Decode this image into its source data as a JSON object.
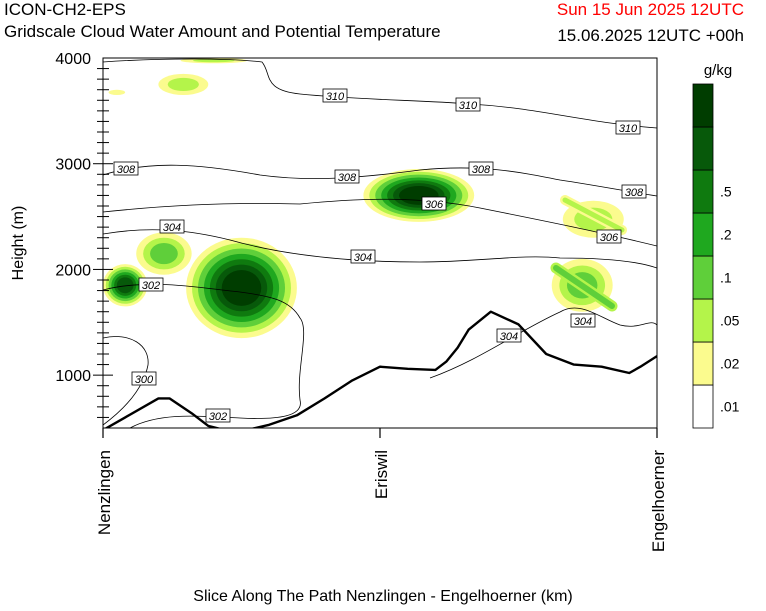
{
  "header": {
    "model": "ICON-CH2-EPS",
    "title": "Gridscale Cloud Water Amount and Potential Temperature",
    "datetime": "Sun 15 Jun 2025 12UTC",
    "validity": "15.06.2025 12UTC +00h"
  },
  "colors": {
    "datetime": "#ff0000",
    "contour": "#000000",
    "terrain": "#000000"
  },
  "chart_data": {
    "type": "heatmap",
    "title": "Gridscale Cloud Water Amount and Potential Temperature",
    "xlabel": "Slice Along The Path Nenzlingen - Engelhoerner (km)",
    "ylabel": "Height (m)",
    "ylim": [
      500,
      4000
    ],
    "y_ticks": [
      "1000",
      "2000",
      "3000",
      "4000"
    ],
    "x_stations": [
      "Nenzlingen",
      "Eriswil",
      "Engelhoerner"
    ],
    "legend": {
      "unit": "g/kg",
      "placement": "right",
      "levels": [
        ".01",
        ".02",
        ".05",
        ".1",
        ".2",
        ".5"
      ],
      "colors": [
        "#ffffff",
        "#fbfb8e",
        "#b4f44a",
        "#5fcf3a",
        "#1fa81f",
        "#0f7a0f",
        "#07590a",
        "#003d00"
      ]
    },
    "contour_labels": [
      "310",
      "310",
      "310",
      "308",
      "308",
      "308",
      "308",
      "306",
      "306",
      "304",
      "304",
      "304",
      "304",
      "302",
      "302",
      "300"
    ],
    "terrain_profile": {
      "x_km": [
        0,
        4,
        10,
        12,
        16,
        19,
        22,
        25,
        30,
        35,
        40,
        45,
        50,
        55,
        60,
        62,
        64,
        66,
        70,
        75,
        80,
        85,
        90,
        95,
        97,
        100
      ],
      "height_m": [
        480,
        600,
        780,
        780,
        640,
        520,
        480,
        470,
        530,
        620,
        780,
        950,
        1080,
        1060,
        1050,
        1130,
        1260,
        1430,
        1600,
        1480,
        1200,
        1100,
        1080,
        1020,
        1080,
        1180
      ]
    },
    "cloud_cells": [
      {
        "x_km": [
          1,
          4
        ],
        "height_m": [
          3650,
          3700
        ],
        "max_level": ".02"
      },
      {
        "x_km": [
          10,
          19
        ],
        "height_m": [
          3650,
          3850
        ],
        "max_level": ".02"
      },
      {
        "x_km": [
          14,
          26
        ],
        "height_m": [
          3950,
          4000
        ],
        "max_level": ".02"
      },
      {
        "x_km": [
          0,
          8
        ],
        "height_m": [
          1650,
          2050
        ],
        "max_level": ".5"
      },
      {
        "x_km": [
          6,
          16
        ],
        "height_m": [
          1950,
          2350
        ],
        "max_level": ".05"
      },
      {
        "x_km": [
          15,
          35
        ],
        "height_m": [
          1350,
          2300
        ],
        "max_level": "> .5"
      },
      {
        "x_km": [
          47,
          67
        ],
        "height_m": [
          2450,
          2950
        ],
        "max_level": "> .5"
      },
      {
        "x_km": [
          83,
          94
        ],
        "height_m": [
          2300,
          2650
        ],
        "max_level": ".02"
      },
      {
        "x_km": [
          81,
          92
        ],
        "height_m": [
          1600,
          2100
        ],
        "max_level": ".05"
      }
    ]
  },
  "labels": {
    "xlabel": "Slice Along The Path Nenzlingen - Engelhoerner (km)",
    "ylabel": "Height (m)",
    "unit": "g/kg"
  }
}
